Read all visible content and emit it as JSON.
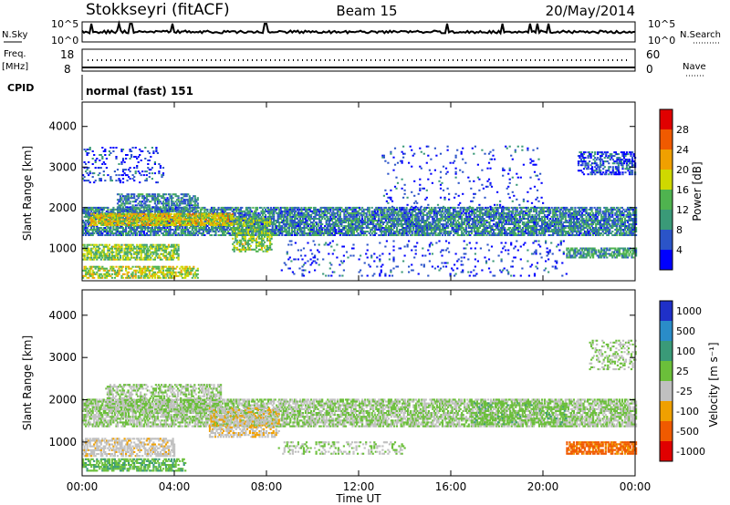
{
  "header": {
    "station": "Stokkseyri (fitACF)",
    "beam": "Beam 15",
    "date": "20/May/2014"
  },
  "summary_panels": {
    "nsky_label": "N.Sky",
    "nsearch_label": "N.Search",
    "freq_label_1": "Freq.",
    "freq_label_2": "[MHz]",
    "nave_label": "Nave",
    "cpid_label": "CPID",
    "cpid_value": "normal (fast) 151",
    "noise_ticks_left": [
      "10^5",
      "10^0"
    ],
    "noise_ticks_right": [
      "10^5",
      "10^0"
    ],
    "freq_ticks": [
      "18",
      "8"
    ],
    "nave_ticks": [
      "60",
      "0"
    ]
  },
  "x_axis": {
    "label": "Time UT",
    "ticks": [
      "00:00",
      "04:00",
      "08:00",
      "12:00",
      "16:00",
      "20:00",
      "00:00"
    ]
  },
  "colors": {
    "power_scale": [
      "#0000ff",
      "#2b54c8",
      "#3a9a78",
      "#4fb34f",
      "#cfd800",
      "#f0a000",
      "#f05a00",
      "#e00000"
    ],
    "velocity_scale": [
      "#1f30c8",
      "#2a8cc8",
      "#3a9a78",
      "#6bbf3a",
      "#c0c0c0",
      "#f0a000",
      "#f05a00",
      "#e00000"
    ]
  },
  "chart_data": [
    {
      "type": "heatmap",
      "panel": "power",
      "xlabel": "Time UT",
      "ylabel": "Slant Range [km]",
      "xlim_hours": [
        0,
        24
      ],
      "ylim": [
        200,
        4600
      ],
      "yticks": [
        "1000",
        "2000",
        "3000",
        "4000"
      ],
      "colorbar": {
        "label": "Power [dB]",
        "ticks": [
          "28",
          "24",
          "20",
          "16",
          "12",
          "8",
          "4"
        ],
        "range": [
          0,
          30
        ]
      },
      "bands": [
        {
          "t": [
            0.0,
            24.0
          ],
          "range_km": [
            1300,
            2000
          ],
          "density": 0.75,
          "value": 8
        },
        {
          "t": [
            0.3,
            6.5
          ],
          "range_km": [
            1550,
            1850
          ],
          "density": 0.8,
          "value": 18
        },
        {
          "t": [
            0.0,
            4.2
          ],
          "range_km": [
            700,
            1100
          ],
          "density": 0.7,
          "value": 14
        },
        {
          "t": [
            0.0,
            5.0
          ],
          "range_km": [
            250,
            550
          ],
          "density": 0.6,
          "value": 16
        },
        {
          "t": [
            1.5,
            5.0
          ],
          "range_km": [
            1900,
            2350
          ],
          "density": 0.6,
          "value": 8
        },
        {
          "t": [
            6.5,
            8.2
          ],
          "range_km": [
            900,
            1750
          ],
          "density": 0.5,
          "value": 14
        },
        {
          "t": [
            0.0,
            3.5
          ],
          "range_km": [
            2600,
            3500
          ],
          "density": 0.15,
          "value": 4
        },
        {
          "t": [
            21.0,
            24.0
          ],
          "range_km": [
            750,
            1000
          ],
          "density": 0.7,
          "value": 10
        },
        {
          "t": [
            21.5,
            24.0
          ],
          "range_km": [
            2800,
            3350
          ],
          "density": 0.5,
          "value": 5
        },
        {
          "t": [
            8.5,
            21.0
          ],
          "range_km": [
            300,
            1200
          ],
          "density": 0.08,
          "value": 4
        },
        {
          "t": [
            13.0,
            20.0
          ],
          "range_km": [
            2000,
            3500
          ],
          "density": 0.06,
          "value": 4
        }
      ]
    },
    {
      "type": "heatmap",
      "panel": "velocity",
      "xlabel": "Time UT",
      "ylabel": "Slant Range [km]",
      "xlim_hours": [
        0,
        24
      ],
      "ylim": [
        200,
        4600
      ],
      "yticks": [
        "1000",
        "2000",
        "3000",
        "4000"
      ],
      "colorbar": {
        "label": "Velocity [m s⁻¹]",
        "ticks": [
          "1000",
          "500",
          "100",
          "25",
          "-25",
          "-100",
          "-500",
          "-1000"
        ],
        "range": [
          -1000,
          1000
        ]
      },
      "bands": [
        {
          "t": [
            0.0,
            24.0
          ],
          "range_km": [
            1350,
            2000
          ],
          "density": 0.7,
          "value": 0
        },
        {
          "t": [
            1.0,
            6.0
          ],
          "range_km": [
            1700,
            2350
          ],
          "density": 0.55,
          "value": 0
        },
        {
          "t": [
            0.0,
            4.0
          ],
          "range_km": [
            650,
            1100
          ],
          "density": 0.6,
          "value": -150
        },
        {
          "t": [
            0.0,
            4.5
          ],
          "range_km": [
            300,
            600
          ],
          "density": 0.6,
          "value": 200
        },
        {
          "t": [
            5.5,
            8.5
          ],
          "range_km": [
            1100,
            1800
          ],
          "density": 0.5,
          "value": -200
        },
        {
          "t": [
            8.5,
            14.0
          ],
          "range_km": [
            700,
            1000
          ],
          "density": 0.3,
          "value": 0
        },
        {
          "t": [
            21.0,
            24.0
          ],
          "range_km": [
            700,
            1000
          ],
          "density": 0.75,
          "value": -600
        },
        {
          "t": [
            22.0,
            24.0
          ],
          "range_km": [
            2700,
            3400
          ],
          "density": 0.3,
          "value": 0
        },
        {
          "t": [
            17.0,
            21.0
          ],
          "range_km": [
            1400,
            1900
          ],
          "density": 0.3,
          "value": 150
        }
      ]
    }
  ]
}
